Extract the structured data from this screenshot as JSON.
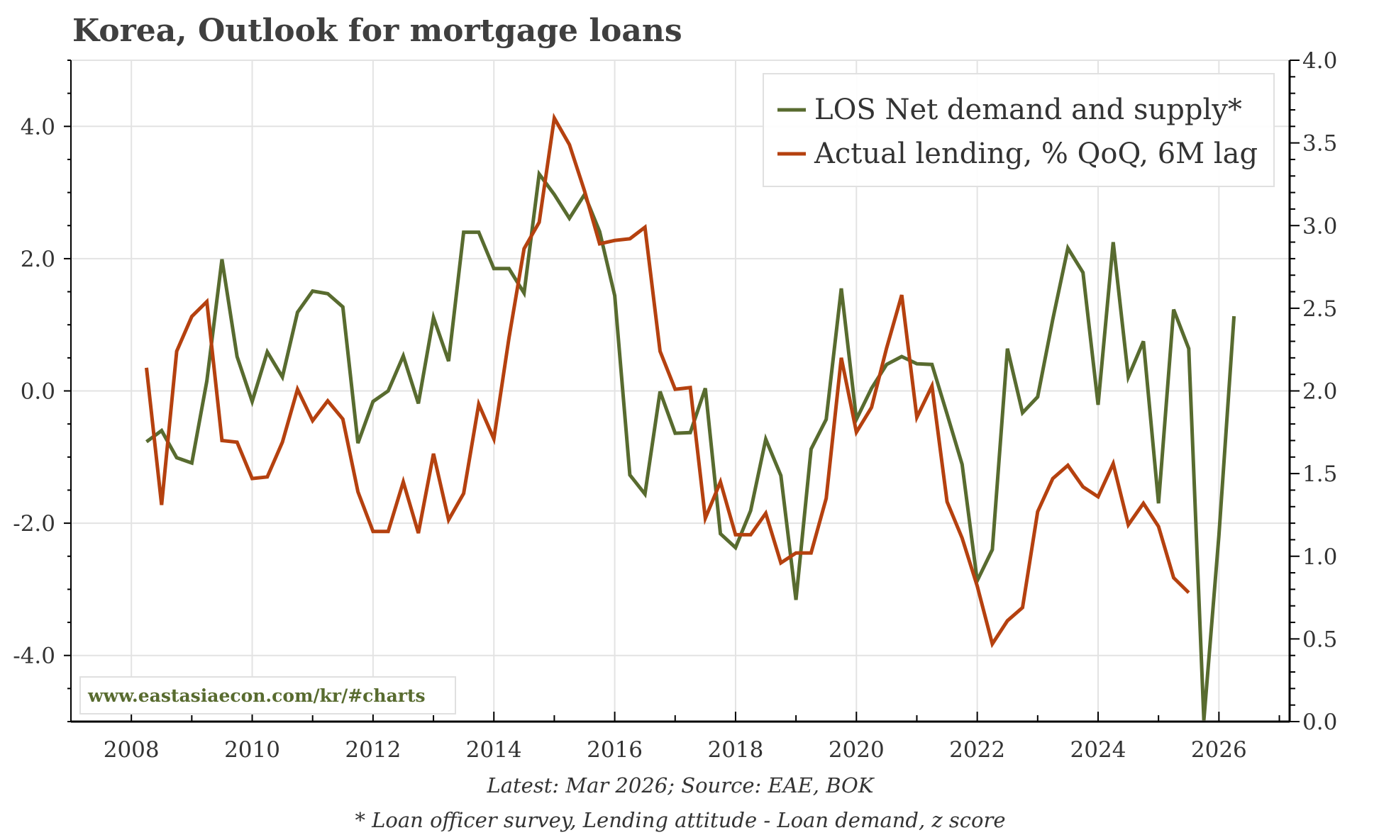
{
  "chart_data": {
    "type": "line",
    "title": "Korea, Outlook for mortgage loans",
    "x_start": 2008.25,
    "x_step": 0.25,
    "xlim": [
      2007.0,
      2027.17
    ],
    "x_ticks": [
      2008,
      2010,
      2012,
      2014,
      2016,
      2018,
      2020,
      2022,
      2024,
      2026
    ],
    "x_tick_labels": [
      "2008",
      "2010",
      "2012",
      "2014",
      "2016",
      "2018",
      "2020",
      "2022",
      "2024",
      "2026"
    ],
    "y_left": {
      "lim": [
        -5,
        5
      ],
      "ticks": [
        4,
        2,
        0,
        -2,
        -4
      ],
      "tick_labels": [
        "4.0",
        "2.0",
        "0.0",
        "-2.0",
        "-4.0"
      ]
    },
    "y_right": {
      "lim": [
        0,
        4
      ],
      "ticks": [
        0,
        0.5,
        1,
        1.5,
        2,
        2.5,
        3,
        3.5,
        4
      ],
      "tick_labels": [
        "0.0",
        "0.5",
        "1.0",
        "1.5",
        "2.0",
        "2.5",
        "3.0",
        "3.5",
        "4.0"
      ]
    },
    "grid": true,
    "legend_position": "top-right",
    "series": [
      {
        "name": "LOS Net demand and supply*",
        "axis": "left",
        "color": "#586b2f",
        "values": [
          -0.77,
          -0.6,
          -1.01,
          -1.09,
          0.15,
          1.99,
          0.52,
          -0.16,
          0.59,
          0.21,
          1.19,
          1.51,
          1.47,
          1.27,
          -0.79,
          -0.16,
          0.0,
          0.53,
          -0.19,
          1.11,
          0.45,
          2.4,
          2.4,
          1.85,
          1.85,
          1.48,
          3.28,
          2.97,
          2.61,
          2.97,
          2.41,
          1.44,
          -1.27,
          -1.56,
          -0.01,
          -0.64,
          -0.63,
          0.04,
          -2.16,
          -2.37,
          -1.81,
          -0.73,
          -1.28,
          -3.16,
          -0.88,
          -0.43,
          1.55,
          -0.43,
          0.04,
          0.4,
          0.52,
          0.41,
          0.4,
          -0.35,
          -1.11,
          -2.87,
          -2.4,
          0.64,
          -0.33,
          -0.09,
          1.08,
          2.16,
          1.79,
          -0.21,
          2.25,
          0.21,
          0.75,
          -1.7,
          1.23,
          0.64,
          -4.98,
          -2.19,
          1.13
        ]
      },
      {
        "name": "Actual lending, % QoQ, 6M lag",
        "axis": "right",
        "color": "#b5410f",
        "values": [
          2.14,
          1.31,
          2.24,
          2.45,
          2.54,
          1.7,
          1.69,
          1.47,
          1.48,
          1.69,
          2.01,
          1.82,
          1.94,
          1.83,
          1.39,
          1.15,
          1.15,
          1.45,
          1.14,
          1.62,
          1.22,
          1.38,
          1.92,
          1.71,
          2.32,
          2.86,
          3.02,
          3.65,
          3.49,
          3.21,
          2.89,
          2.91,
          2.92,
          2.99,
          2.24,
          2.01,
          2.02,
          1.23,
          1.45,
          1.13,
          1.13,
          1.26,
          0.96,
          1.02,
          1.02,
          1.35,
          2.2,
          1.75,
          1.9,
          2.26,
          2.58,
          1.84,
          2.03,
          1.33,
          1.11,
          0.82,
          0.47,
          0.61,
          0.69,
          1.27,
          1.47,
          1.55,
          1.42,
          1.36,
          1.56,
          1.19,
          1.32,
          1.18,
          0.87,
          0.78
        ]
      }
    ],
    "watermark": "www.eastasiaecon.com/kr/#charts",
    "source_note": "Latest: Mar 2026; Source: EAE, BOK",
    "footnote": "* Loan officer survey, Lending attitude - Loan demand, z score"
  }
}
